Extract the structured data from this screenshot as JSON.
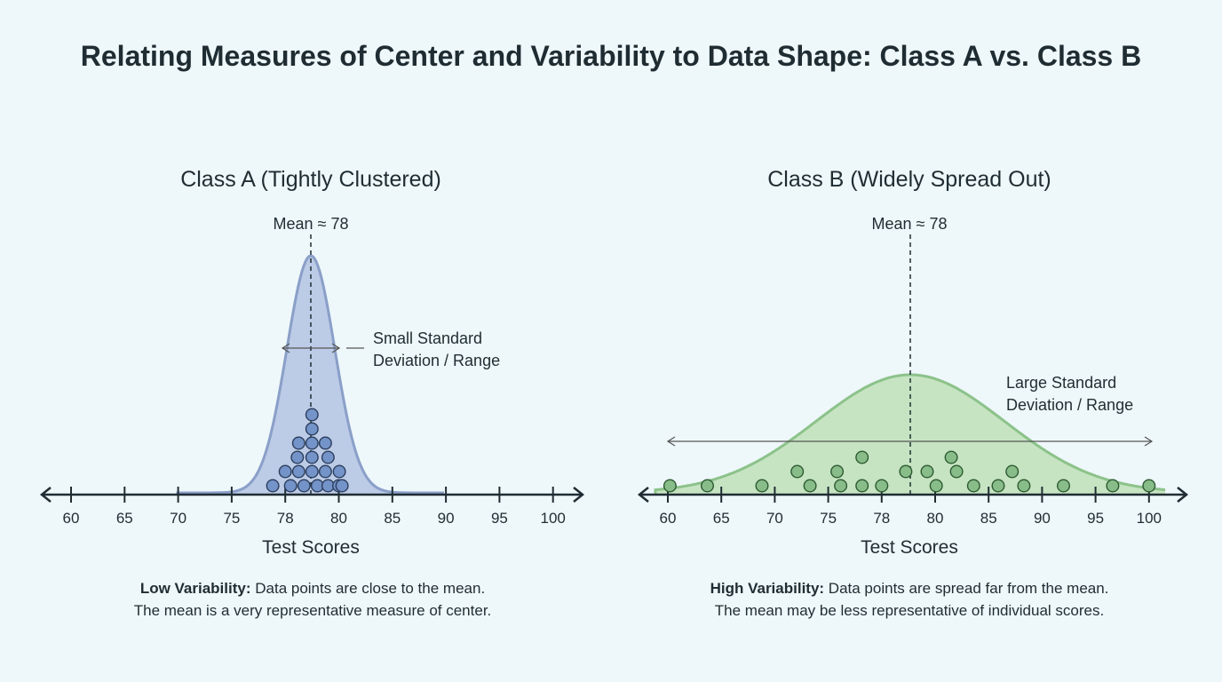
{
  "title": "Relating Measures of Center and Variability to Data Shape: Class A vs. Class B",
  "chart_data": [
    {
      "type": "scatter",
      "title": "Class A (Tightly Clustered)",
      "xlabel": "Test Scores",
      "x_ticks": [
        60,
        65,
        70,
        75,
        78,
        80,
        85,
        90,
        95,
        100
      ],
      "mean_label": "Mean ≈ 78",
      "mean": 78,
      "annotation": [
        "Small Standard",
        "Deviation / Range"
      ],
      "caption_bold": "Low Variability:",
      "caption_line1": " Data points are close to the mean.",
      "caption_line2": "The mean is a very representative measure of center.",
      "style": "dot plot over bell curve",
      "colors": {
        "fill": "#bccbe6",
        "stroke": "#8a9fc8",
        "dot": "#7393c9",
        "dot_edge": "#2c3e5c"
      },
      "points": [
        {
          "x": 77.3,
          "stack": 1
        },
        {
          "x": 78.2,
          "stack": 1
        },
        {
          "x": 78.7,
          "stack": 1
        },
        {
          "x": 79.2,
          "stack": 1
        },
        {
          "x": 79.6,
          "stack": 1
        },
        {
          "x": 80.0,
          "stack": 1
        },
        {
          "x": 80.3,
          "stack": 1
        },
        {
          "x": 78.0,
          "stack": 2
        },
        {
          "x": 78.5,
          "stack": 2
        },
        {
          "x": 79.0,
          "stack": 2
        },
        {
          "x": 79.5,
          "stack": 2
        },
        {
          "x": 80.05,
          "stack": 2
        },
        {
          "x": 78.45,
          "stack": 3
        },
        {
          "x": 79.0,
          "stack": 3
        },
        {
          "x": 79.6,
          "stack": 3
        },
        {
          "x": 78.5,
          "stack": 4
        },
        {
          "x": 79.0,
          "stack": 4
        },
        {
          "x": 79.5,
          "stack": 4
        },
        {
          "x": 79.0,
          "stack": 5
        },
        {
          "x": 79.0,
          "stack": 6
        }
      ]
    },
    {
      "type": "scatter",
      "title": "Class B (Widely Spread Out)",
      "xlabel": "Test Scores",
      "x_ticks": [
        60,
        65,
        70,
        75,
        78,
        80,
        85,
        90,
        95,
        100
      ],
      "mean_label": "Mean ≈ 78",
      "mean": 78,
      "annotation": [
        "Large Standard",
        "Deviation / Range"
      ],
      "caption_bold": "High Variability:",
      "caption_line1": " Data points are spread far from the mean.",
      "caption_line2": "The mean may be less representative of individual scores.",
      "style": "dot plot over bell curve",
      "colors": {
        "fill": "#c6e4c2",
        "stroke": "#8cc28a",
        "dot": "#88bc88",
        "dot_edge": "#2d5a32"
      },
      "points": [
        {
          "x": 60.2,
          "stack": 1
        },
        {
          "x": 63.7,
          "stack": 1
        },
        {
          "x": 68.8,
          "stack": 1
        },
        {
          "x": 73.3,
          "stack": 1
        },
        {
          "x": 75.7,
          "stack": 1
        },
        {
          "x": 76.9,
          "stack": 1
        },
        {
          "x": 78.0,
          "stack": 1
        },
        {
          "x": 80.1,
          "stack": 1
        },
        {
          "x": 83.6,
          "stack": 1
        },
        {
          "x": 85.9,
          "stack": 1
        },
        {
          "x": 88.3,
          "stack": 1
        },
        {
          "x": 92.0,
          "stack": 1
        },
        {
          "x": 96.6,
          "stack": 1
        },
        {
          "x": 100,
          "stack": 1
        },
        {
          "x": 72.1,
          "stack": 2
        },
        {
          "x": 75.5,
          "stack": 2
        },
        {
          "x": 78.9,
          "stack": 2
        },
        {
          "x": 79.7,
          "stack": 2
        },
        {
          "x": 82.0,
          "stack": 2
        },
        {
          "x": 87.2,
          "stack": 2
        },
        {
          "x": 76.9,
          "stack": 3
        },
        {
          "x": 81.5,
          "stack": 3
        }
      ]
    }
  ]
}
